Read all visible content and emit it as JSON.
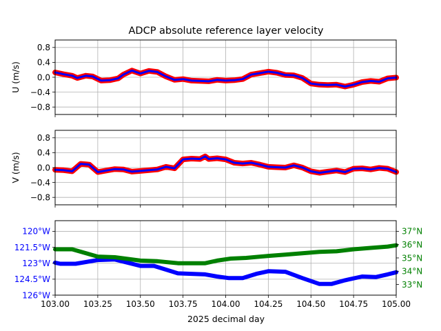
{
  "title": "ADCP absolute reference layer velocity",
  "colors": {
    "axis": "#000000",
    "grid": "#b0b0b0",
    "velocity_raw": "#ff0000",
    "velocity_smooth": "#0000ff",
    "longitude": "#0000ff",
    "latitude": "#008000"
  },
  "chart_data": [
    {
      "type": "scatter",
      "title": "ADCP absolute reference layer velocity",
      "ylabel": "U (m/s)",
      "xlabel": "",
      "xlim": [
        103.0,
        105.0
      ],
      "ylim": [
        -1.0,
        1.0
      ],
      "yticks": [
        -0.8,
        -0.4,
        0.0,
        0.4,
        0.8
      ],
      "yticklabels": [
        "−0.8",
        "−0.4",
        "0.0",
        "0.4",
        "0.8"
      ],
      "grid": true,
      "series": [
        {
          "x": [
            103.0,
            103.05,
            103.1,
            103.13,
            103.18,
            103.22,
            103.27,
            103.32,
            103.37,
            103.4,
            103.45,
            103.5,
            103.55,
            103.6,
            103.65,
            103.7,
            103.75,
            103.8,
            103.85,
            103.9,
            103.95,
            104.0,
            104.05,
            104.1,
            104.15,
            104.2,
            104.25,
            104.3,
            104.35,
            104.4,
            104.45,
            104.5,
            104.55,
            104.6,
            104.65,
            104.7,
            104.75,
            104.8,
            104.85,
            104.9,
            104.95,
            105.0
          ],
          "y": [
            0.13,
            0.08,
            0.04,
            -0.02,
            0.04,
            0.02,
            -0.09,
            -0.08,
            -0.03,
            0.07,
            0.18,
            0.1,
            0.17,
            0.14,
            0.02,
            -0.07,
            -0.05,
            -0.09,
            -0.1,
            -0.11,
            -0.07,
            -0.09,
            -0.08,
            -0.05,
            0.07,
            0.11,
            0.15,
            0.12,
            0.06,
            0.05,
            -0.02,
            -0.17,
            -0.2,
            -0.21,
            -0.2,
            -0.25,
            -0.2,
            -0.13,
            -0.1,
            -0.12,
            -0.03,
            -0.01
          ]
        }
      ]
    },
    {
      "type": "scatter",
      "ylabel": "V (m/s)",
      "xlabel": "",
      "xlim": [
        103.0,
        105.0
      ],
      "ylim": [
        -1.0,
        1.0
      ],
      "yticks": [
        -0.8,
        -0.4,
        0.0,
        0.4,
        0.8
      ],
      "yticklabels": [
        "−0.8",
        "−0.4",
        "0.0",
        "0.4",
        "0.8"
      ],
      "grid": true,
      "series": [
        {
          "x": [
            103.0,
            103.05,
            103.1,
            103.15,
            103.2,
            103.25,
            103.3,
            103.35,
            103.4,
            103.45,
            103.5,
            103.55,
            103.6,
            103.65,
            103.7,
            103.75,
            103.8,
            103.85,
            103.88,
            103.9,
            103.95,
            104.0,
            104.05,
            104.1,
            104.15,
            104.2,
            104.25,
            104.3,
            104.35,
            104.4,
            104.45,
            104.5,
            104.55,
            104.6,
            104.65,
            104.7,
            104.75,
            104.8,
            104.85,
            104.9,
            104.95,
            105.0
          ],
          "y": [
            -0.06,
            -0.07,
            -0.1,
            0.1,
            0.08,
            -0.12,
            -0.08,
            -0.04,
            -0.05,
            -0.11,
            -0.09,
            -0.07,
            -0.05,
            0.02,
            -0.02,
            0.22,
            0.24,
            0.23,
            0.3,
            0.23,
            0.25,
            0.22,
            0.13,
            0.11,
            0.13,
            0.08,
            0.02,
            0.01,
            0.0,
            0.06,
            0.0,
            -0.1,
            -0.14,
            -0.11,
            -0.08,
            -0.12,
            -0.03,
            -0.02,
            -0.05,
            -0.01,
            -0.03,
            -0.12
          ]
        }
      ]
    },
    {
      "type": "line",
      "xlabel": "2025 decimal day",
      "xlim": [
        103.0,
        105.0
      ],
      "xticks": [
        103.0,
        103.25,
        103.5,
        103.75,
        104.0,
        104.25,
        104.5,
        104.75,
        105.0
      ],
      "xticklabels": [
        "103.00",
        "103.25",
        "103.50",
        "103.75",
        "104.00",
        "104.25",
        "104.50",
        "104.75",
        "105.00"
      ],
      "grid": true,
      "left_axis": {
        "label": "",
        "ylim": [
          -126.0,
          -119.0
        ],
        "yticks": [
          -126.0,
          -124.5,
          -123.0,
          -121.5,
          -120.0
        ],
        "yticklabels": [
          "126°W",
          "124.5°W",
          "123°W",
          "121.5°W",
          "120°W"
        ]
      },
      "right_axis": {
        "label": "",
        "ylim": [
          32.2,
          37.8
        ],
        "yticks": [
          33.0,
          34.0,
          35.0,
          36.0,
          37.0
        ],
        "yticklabels": [
          "33°N",
          "34°N",
          "35°N",
          "36°N",
          "37°N"
        ]
      },
      "series": [
        {
          "axis": "left",
          "x": [
            103.0,
            103.03,
            103.12,
            103.25,
            103.35,
            103.5,
            103.58,
            103.72,
            103.8,
            103.88,
            103.95,
            104.02,
            104.1,
            104.18,
            104.25,
            104.35,
            104.45,
            104.55,
            104.62,
            104.7,
            104.8,
            104.88,
            104.95,
            105.0
          ],
          "y": [
            -122.95,
            -123.05,
            -123.05,
            -122.7,
            -122.65,
            -123.25,
            -123.25,
            -123.95,
            -124.0,
            -124.05,
            -124.25,
            -124.4,
            -124.4,
            -124.0,
            -123.75,
            -123.8,
            -124.4,
            -124.95,
            -124.95,
            -124.6,
            -124.25,
            -124.3,
            -124.05,
            -123.85
          ]
        },
        {
          "axis": "right",
          "x": [
            103.0,
            103.1,
            103.25,
            103.35,
            103.5,
            103.6,
            103.72,
            103.88,
            103.95,
            104.03,
            104.12,
            104.25,
            104.35,
            104.45,
            104.55,
            104.65,
            104.75,
            104.85,
            104.95,
            105.0
          ],
          "y": [
            35.65,
            35.65,
            35.1,
            35.05,
            34.8,
            34.75,
            34.6,
            34.6,
            34.8,
            34.95,
            35.0,
            35.15,
            35.25,
            35.35,
            35.45,
            35.5,
            35.65,
            35.75,
            35.85,
            35.95
          ]
        }
      ]
    }
  ]
}
